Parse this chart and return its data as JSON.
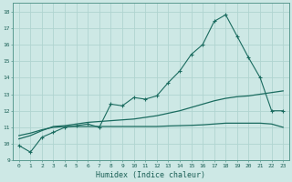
{
  "title": "",
  "xlabel": "Humidex (Indice chaleur)",
  "ylabel": "",
  "background_color": "#cde8e5",
  "grid_color": "#b0d4d0",
  "line_color": "#1a6b5f",
  "x_values": [
    0,
    1,
    2,
    3,
    4,
    5,
    6,
    7,
    8,
    9,
    10,
    11,
    12,
    13,
    14,
    15,
    16,
    17,
    18,
    19,
    20,
    21,
    22,
    23
  ],
  "main_line": [
    9.9,
    9.5,
    10.4,
    10.7,
    11.0,
    11.1,
    11.2,
    11.0,
    12.4,
    12.3,
    12.8,
    12.7,
    12.9,
    13.7,
    14.4,
    15.4,
    16.0,
    17.4,
    17.8,
    16.5,
    15.2,
    14.0,
    12.0,
    12.0
  ],
  "trend_line1": [
    10.3,
    10.5,
    10.8,
    11.05,
    11.1,
    11.2,
    11.3,
    11.35,
    11.4,
    11.45,
    11.5,
    11.6,
    11.7,
    11.85,
    12.0,
    12.2,
    12.4,
    12.6,
    12.75,
    12.85,
    12.9,
    13.0,
    13.1,
    13.2
  ],
  "trend_line2": [
    10.5,
    10.65,
    10.85,
    11.0,
    11.05,
    11.05,
    11.05,
    11.05,
    11.05,
    11.05,
    11.05,
    11.05,
    11.05,
    11.08,
    11.1,
    11.12,
    11.15,
    11.2,
    11.25,
    11.25,
    11.25,
    11.25,
    11.2,
    11.0
  ],
  "xlim": [
    -0.5,
    23.5
  ],
  "ylim": [
    9.0,
    18.5
  ],
  "yticks": [
    9,
    10,
    11,
    12,
    13,
    14,
    15,
    16,
    17,
    18
  ],
  "xticks": [
    0,
    1,
    2,
    3,
    4,
    5,
    6,
    7,
    8,
    9,
    10,
    11,
    12,
    13,
    14,
    15,
    16,
    17,
    18,
    19,
    20,
    21,
    22,
    23
  ]
}
